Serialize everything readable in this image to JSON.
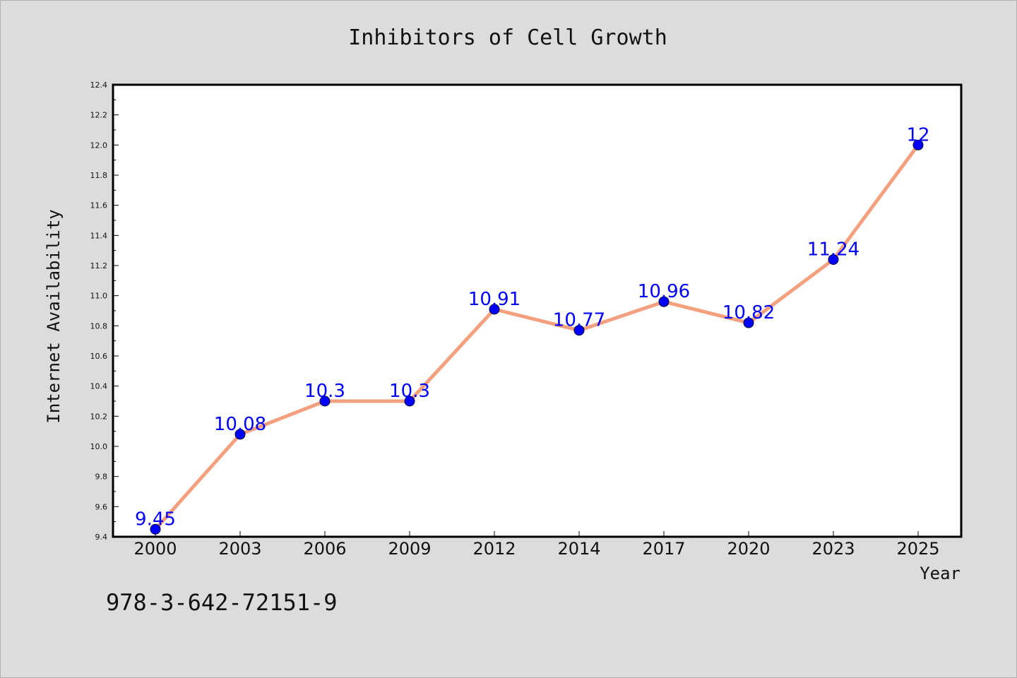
{
  "chart_data": {
    "type": "line",
    "title": "Inhibitors of Cell Growth",
    "xlabel": "Year",
    "ylabel": "Internet Availability",
    "categories": [
      "2000",
      "2003",
      "2006",
      "2009",
      "2012",
      "2014",
      "2017",
      "2020",
      "2023",
      "2025"
    ],
    "values": [
      9.45,
      10.08,
      10.3,
      10.3,
      10.91,
      10.77,
      10.96,
      10.82,
      11.24,
      12
    ],
    "data_labels": [
      "9.45",
      "10.08",
      "10.3",
      "10.3",
      "10.91",
      "10.77",
      "10.96",
      "10.82",
      "11.24",
      "12"
    ],
    "ylim": [
      9.4,
      12.4
    ],
    "yticks": [
      "9.4",
      "9.6",
      "9.8",
      "10.0",
      "10.2",
      "10.4",
      "10.6",
      "10.8",
      "11.0",
      "11.2",
      "11.4",
      "11.6",
      "11.8",
      "12.0",
      "12.2",
      "12.4"
    ],
    "grid": false,
    "line_color": "#f4a07e",
    "marker_color": "#0000ff",
    "label_color": "#0000ff"
  },
  "footnote": "978-3-642-72151-9"
}
